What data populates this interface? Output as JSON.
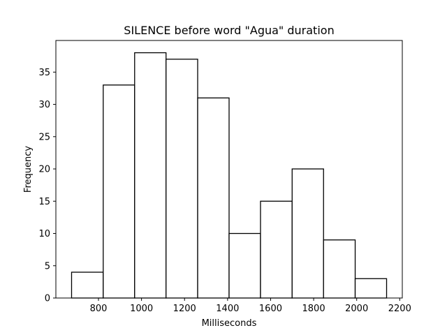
{
  "chart_data": {
    "type": "bar",
    "subtype": "histogram",
    "title": "SILENCE before word \"Agua\" duration",
    "xlabel": "Milliseconds",
    "ylabel": "Frequency",
    "bins": [
      {
        "start": 675,
        "end": 822,
        "count": 4
      },
      {
        "start": 822,
        "end": 968,
        "count": 33
      },
      {
        "start": 968,
        "end": 1114,
        "count": 38
      },
      {
        "start": 1114,
        "end": 1261,
        "count": 37
      },
      {
        "start": 1261,
        "end": 1407,
        "count": 31
      },
      {
        "start": 1407,
        "end": 1553,
        "count": 10
      },
      {
        "start": 1553,
        "end": 1700,
        "count": 15
      },
      {
        "start": 1700,
        "end": 1846,
        "count": 20
      },
      {
        "start": 1846,
        "end": 1993,
        "count": 9
      },
      {
        "start": 1993,
        "end": 2139,
        "count": 3
      }
    ],
    "xlim": [
      602,
      2212
    ],
    "ylim": [
      0,
      39.9
    ],
    "xticks": [
      800,
      1000,
      1200,
      1400,
      1600,
      1800,
      2000,
      2200
    ],
    "yticks": [
      0,
      5,
      10,
      15,
      20,
      25,
      30,
      35
    ],
    "grid": false,
    "bar_fill": "#ffffff",
    "bar_edge": "#000000"
  }
}
